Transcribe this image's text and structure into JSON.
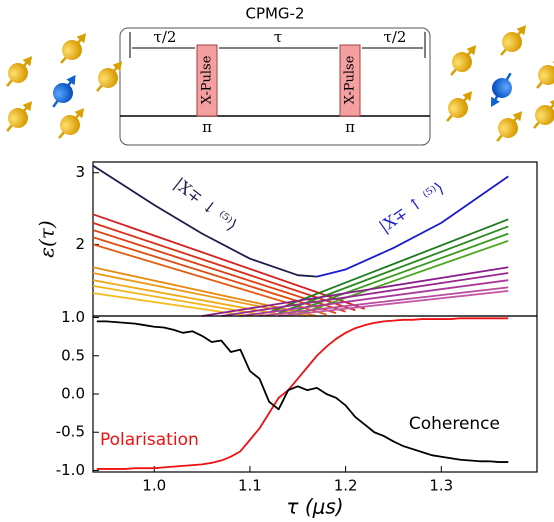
{
  "diagram": {
    "title": "CPMG-2",
    "intervals": [
      "τ/2",
      "τ",
      "τ/2"
    ],
    "pulses": [
      {
        "label": "X-Pulse",
        "angle": "π"
      },
      {
        "label": "X-Pulse",
        "angle": "π"
      }
    ]
  },
  "chart_data": [
    {
      "type": "line",
      "ylabel": "ε(τ)",
      "xlim": [
        0.936,
        1.4
      ],
      "ylim": [
        1.0,
        3.15
      ],
      "yticks": [
        2,
        3
      ],
      "annotations": [
        "|X∓ ↓ ⁽⁵⁾⟩",
        "|X∓ ↑ ⁽⁵⁾⟩"
      ],
      "series": [
        {
          "color": "#1c1c4a",
          "x": [
            0.936,
            1.0,
            1.05,
            1.1,
            1.15,
            1.17
          ],
          "values": [
            3.1,
            2.55,
            2.15,
            1.8,
            1.57,
            1.55
          ]
        },
        {
          "color": "#1a1acc",
          "x": [
            1.17,
            1.2,
            1.25,
            1.3,
            1.37
          ],
          "values": [
            1.55,
            1.65,
            1.95,
            2.3,
            2.95
          ]
        },
        {
          "color": "#d42020",
          "x": [
            0.936,
            1.22
          ],
          "values": [
            2.42,
            1.1
          ]
        },
        {
          "color": "#d83018",
          "x": [
            0.936,
            1.21
          ],
          "values": [
            2.3,
            1.08
          ]
        },
        {
          "color": "#dc4010",
          "x": [
            0.936,
            1.2
          ],
          "values": [
            2.2,
            1.06
          ]
        },
        {
          "color": "#e04c10",
          "x": [
            0.936,
            1.19
          ],
          "values": [
            2.1,
            1.04
          ]
        },
        {
          "color": "#e45a10",
          "x": [
            0.936,
            1.18
          ],
          "values": [
            2.0,
            1.02
          ]
        },
        {
          "color": "#e88a10",
          "x": [
            0.936,
            1.17
          ],
          "values": [
            1.68,
            1.0
          ]
        },
        {
          "color": "#ec9a14",
          "x": [
            0.936,
            1.16
          ],
          "values": [
            1.6,
            1.0
          ]
        },
        {
          "color": "#f0aa18",
          "x": [
            0.936,
            1.14
          ],
          "values": [
            1.5,
            1.0
          ]
        },
        {
          "color": "#f2b41c",
          "x": [
            0.936,
            1.12
          ],
          "values": [
            1.42,
            1.0
          ]
        },
        {
          "color": "#f4bc20",
          "x": [
            0.936,
            1.1
          ],
          "values": [
            1.32,
            1.0
          ]
        },
        {
          "color": "#1e7a1e",
          "x": [
            1.12,
            1.37
          ],
          "values": [
            1.05,
            2.35
          ]
        },
        {
          "color": "#2a8a1e",
          "x": [
            1.13,
            1.37
          ],
          "values": [
            1.04,
            2.25
          ]
        },
        {
          "color": "#3a9a1e",
          "x": [
            1.14,
            1.37
          ],
          "values": [
            1.03,
            2.15
          ]
        },
        {
          "color": "#4aa81e",
          "x": [
            1.15,
            1.37
          ],
          "values": [
            1.02,
            2.05
          ]
        },
        {
          "color": "#8a1e8a",
          "x": [
            1.05,
            1.37
          ],
          "values": [
            1.0,
            1.68
          ]
        },
        {
          "color": "#9a2a90",
          "x": [
            1.07,
            1.37
          ],
          "values": [
            1.0,
            1.6
          ]
        },
        {
          "color": "#aa3a98",
          "x": [
            1.09,
            1.37
          ],
          "values": [
            1.0,
            1.5
          ]
        },
        {
          "color": "#b84aa0",
          "x": [
            1.11,
            1.37
          ],
          "values": [
            1.0,
            1.4
          ]
        },
        {
          "color": "#c45aa8",
          "x": [
            1.13,
            1.37
          ],
          "values": [
            1.0,
            1.35
          ]
        }
      ]
    },
    {
      "type": "line",
      "xlabel": "τ (μs)",
      "xlim": [
        0.936,
        1.4
      ],
      "ylim": [
        -1.02,
        1.02
      ],
      "xticks": [
        {
          "value": 1,
          "label": "1.0"
        },
        1.1,
        1.2,
        1.3
      ],
      "yticks": [
        {
          "value": -1,
          "label": "-1.0"
        },
        -0.5,
        {
          "value": 0,
          "label": "0.0"
        },
        0.5,
        {
          "value": 1,
          "label": "1.0"
        }
      ],
      "x": [
        0.94,
        0.95,
        0.96,
        0.97,
        0.98,
        0.99,
        1.0,
        1.01,
        1.02,
        1.03,
        1.04,
        1.05,
        1.06,
        1.07,
        1.08,
        1.09,
        1.1,
        1.11,
        1.12,
        1.13,
        1.14,
        1.15,
        1.16,
        1.17,
        1.18,
        1.19,
        1.2,
        1.21,
        1.22,
        1.23,
        1.24,
        1.25,
        1.26,
        1.27,
        1.28,
        1.29,
        1.3,
        1.31,
        1.32,
        1.33,
        1.34,
        1.35,
        1.36,
        1.37
      ],
      "series": [
        {
          "name": "Polarisation",
          "color": "#ee1111",
          "values": [
            -0.98,
            -0.98,
            -0.98,
            -0.98,
            -0.97,
            -0.97,
            -0.97,
            -0.96,
            -0.95,
            -0.94,
            -0.93,
            -0.92,
            -0.9,
            -0.87,
            -0.82,
            -0.75,
            -0.6,
            -0.45,
            -0.25,
            -0.05,
            0.05,
            0.2,
            0.35,
            0.5,
            0.62,
            0.72,
            0.8,
            0.86,
            0.9,
            0.93,
            0.95,
            0.96,
            0.97,
            0.97,
            0.98,
            0.98,
            0.98,
            0.98,
            0.99,
            0.99,
            0.99,
            0.99,
            0.99,
            0.99
          ]
        },
        {
          "name": "Coherence",
          "color": "#000000",
          "values": [
            0.95,
            0.95,
            0.94,
            0.93,
            0.92,
            0.9,
            0.88,
            0.87,
            0.84,
            0.8,
            0.82,
            0.76,
            0.68,
            0.7,
            0.55,
            0.58,
            0.3,
            0.2,
            -0.1,
            -0.2,
            0.05,
            0.1,
            0.05,
            0.08,
            0.0,
            -0.05,
            -0.15,
            -0.3,
            -0.4,
            -0.5,
            -0.55,
            -0.62,
            -0.68,
            -0.72,
            -0.76,
            -0.8,
            -0.82,
            -0.84,
            -0.86,
            -0.87,
            -0.88,
            -0.88,
            -0.89,
            -0.89
          ]
        }
      ]
    }
  ]
}
